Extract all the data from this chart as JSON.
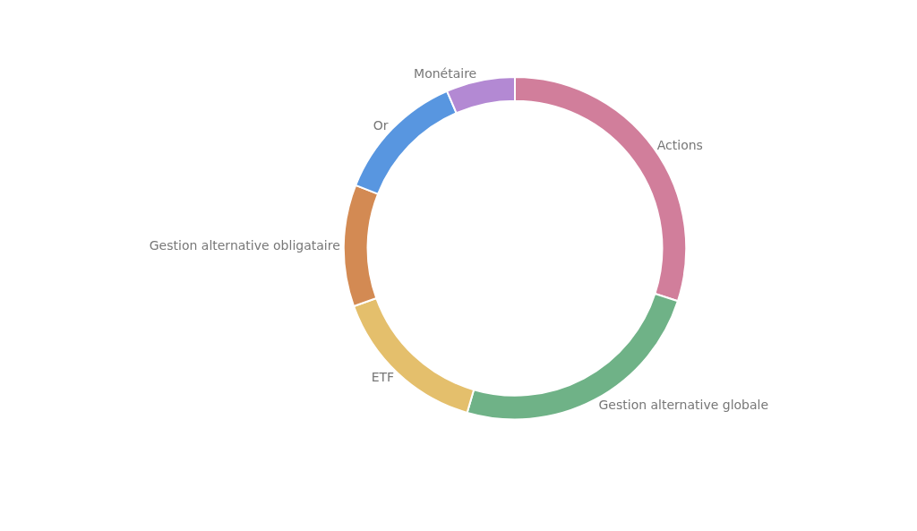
{
  "chart_data": {
    "type": "donut",
    "categories": [
      "Actions",
      "Gestion alternative globale",
      "ETF",
      "Gestion alternative obligataire",
      "Or",
      "Monétaire"
    ],
    "values": [
      30,
      24.5,
      15,
      11.5,
      12.5,
      6.5
    ],
    "colors": [
      "#d17e9b",
      "#6fb287",
      "#e4bf6c",
      "#d38a53",
      "#5896e0",
      "#b389d3"
    ],
    "legend": false
  }
}
